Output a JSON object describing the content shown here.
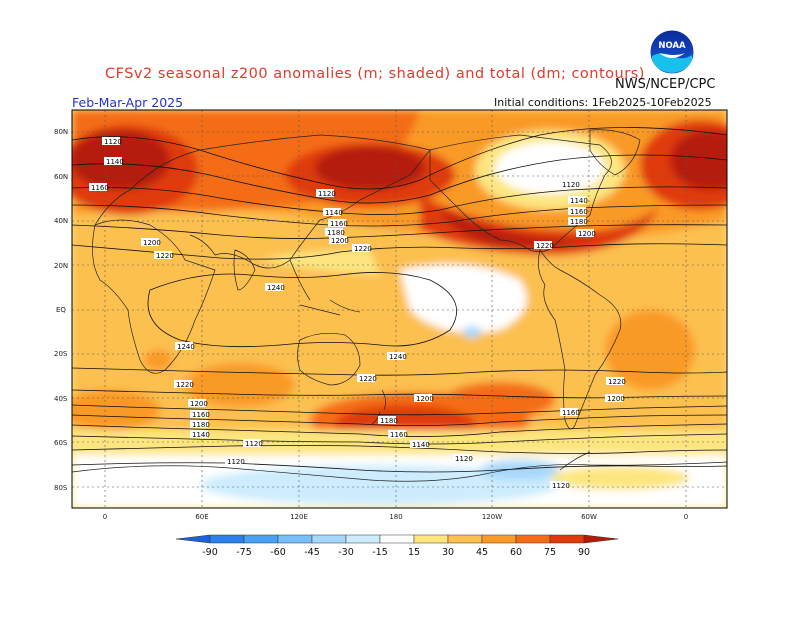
{
  "header": {
    "title": "CFSv2 seasonal z200 anomalies (m; shaded) and total (dm; contours)",
    "agency": "NWS/NCEP/CPC",
    "season": "Feb-Mar-Apr 2025",
    "initial_conditions": "Initial conditions: 1Feb2025-10Feb2025",
    "logo_text": "NOAA"
  },
  "map": {
    "lat_labels": [
      "80N",
      "60N",
      "40N",
      "20N",
      "EQ",
      "20S",
      "40S",
      "60S",
      "80S"
    ],
    "lon_labels": [
      "0",
      "60E",
      "120E",
      "180",
      "120W",
      "60W",
      "0"
    ],
    "contour_labels": [
      "1120",
      "1140",
      "1160",
      "1180",
      "1200",
      "1220",
      "1240"
    ],
    "shading_colors": {
      "neg90": "#1e60d8",
      "neg75": "#2b80ee",
      "neg60": "#4aa0f5",
      "neg45": "#78c0fa",
      "neg30": "#a6d8fc",
      "neg15": "#cdecfd",
      "pos15": "#fde680",
      "pos30": "#fcc050",
      "pos45": "#fa9a28",
      "pos60": "#f46d14",
      "pos75": "#e03a0a",
      "pos90": "#b51a08"
    }
  },
  "colorbar": {
    "ticks": [
      "-90",
      "-75",
      "-60",
      "-45",
      "-30",
      "-15",
      "15",
      "30",
      "45",
      "60",
      "75",
      "90"
    ],
    "colors": [
      "#1e60d8",
      "#2b80ee",
      "#4aa0f5",
      "#78c0fa",
      "#a6d8fc",
      "#cdecfd",
      "#ffffff",
      "#fde680",
      "#fcc050",
      "#fa9a28",
      "#f46d14",
      "#e03a0a",
      "#b51a08"
    ]
  }
}
